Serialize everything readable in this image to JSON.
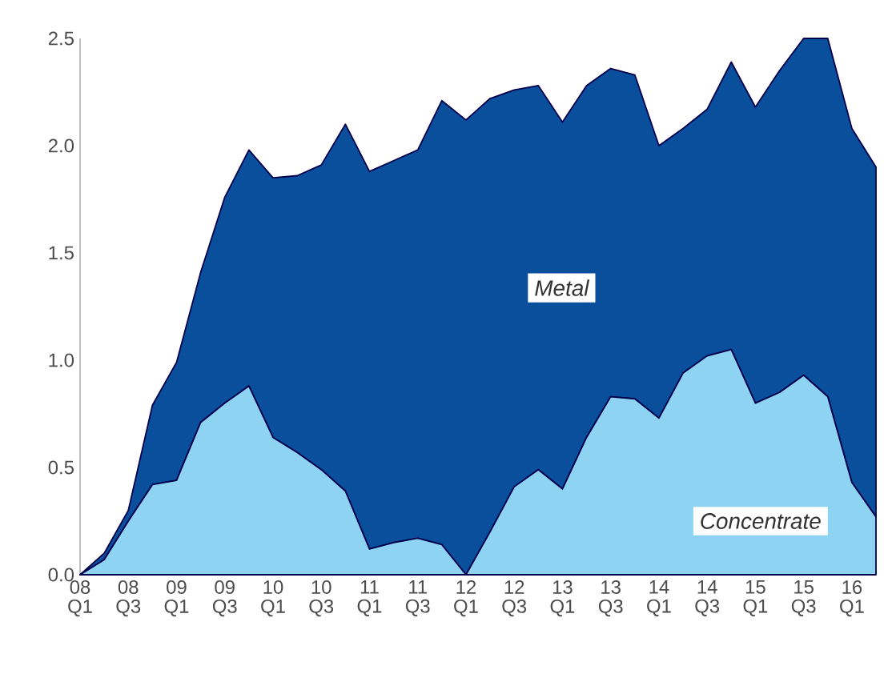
{
  "chart_data": {
    "type": "area",
    "stacked": true,
    "categories": [
      "08 Q1",
      null,
      "08 Q3",
      null,
      "09 Q1",
      null,
      "09 Q3",
      null,
      "10 Q1",
      null,
      "10 Q3",
      null,
      "11 Q1",
      null,
      "11 Q3",
      null,
      "12 Q1",
      null,
      "12 Q3",
      null,
      "13 Q1",
      null,
      "13 Q3",
      null,
      "14 Q1",
      null,
      "14 Q3",
      null,
      "15 Q1",
      null,
      "15 Q3",
      null,
      "16 Q1",
      null
    ],
    "series": [
      {
        "name": "Concentrate",
        "color": "#8fd3f2",
        "values": [
          0,
          0.07,
          0.25,
          0.42,
          0.44,
          0.71,
          0.8,
          0.88,
          0.64,
          0.57,
          0.49,
          0.39,
          0.12,
          0.15,
          0.17,
          0.14,
          0,
          0.2,
          0.41,
          0.49,
          0.4,
          0.64,
          0.83,
          0.82,
          0.73,
          0.94,
          1.02,
          1.05,
          0.8,
          0.85,
          0.93,
          0.83,
          0.43,
          0.27
        ]
      },
      {
        "name": "Metal",
        "color": "#0a4f9c",
        "values": [
          0,
          0.03,
          0.05,
          0.37,
          0.55,
          0.7,
          0.96,
          1.1,
          1.21,
          1.29,
          1.42,
          1.71,
          1.76,
          1.78,
          1.81,
          2.07,
          2.12,
          2.02,
          1.85,
          1.79,
          1.71,
          1.64,
          1.53,
          1.51,
          1.27,
          1.14,
          1.15,
          1.34,
          1.38,
          1.5,
          1.57,
          1.67,
          1.65,
          1.63
        ]
      }
    ],
    "ylim": [
      0,
      2.5
    ],
    "yticks": [
      {
        "value": 0,
        "label": "0.0"
      },
      {
        "value": 0.5,
        "label": "0.5"
      },
      {
        "value": 1,
        "label": "1.0"
      },
      {
        "value": 1.5,
        "label": "1.5"
      },
      {
        "value": 2,
        "label": "2.0"
      },
      {
        "value": 2.5,
        "label": "2.5"
      }
    ],
    "grid": false,
    "legend": false
  }
}
